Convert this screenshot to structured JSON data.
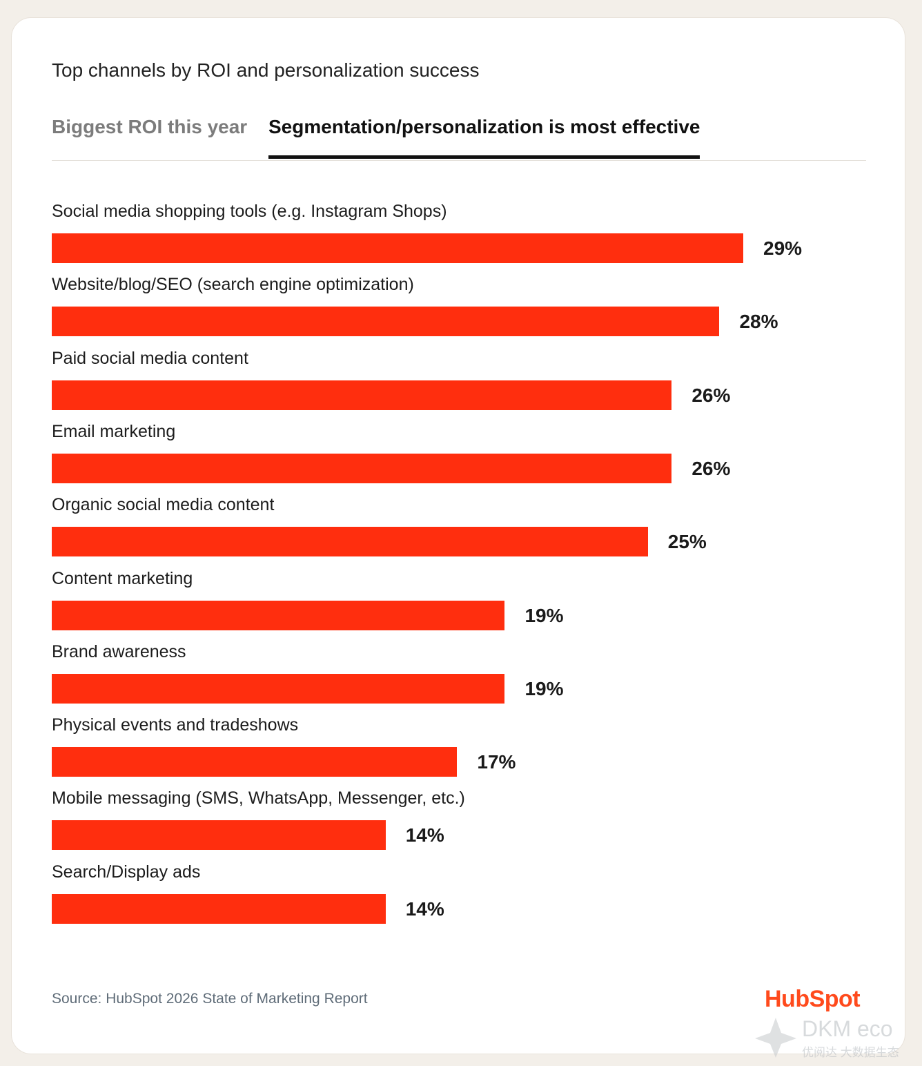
{
  "header": {
    "title": "Top channels by ROI and personalization success"
  },
  "tabs": [
    {
      "label": "Biggest ROI this year",
      "active": false
    },
    {
      "label": "Segmentation/personalization is most effective",
      "active": true
    }
  ],
  "chart_data": {
    "type": "bar",
    "orientation": "horizontal",
    "categories": [
      "Social media shopping tools (e.g. Instagram Shops)",
      "Website/blog/SEO (search engine optimization)",
      "Paid social media content",
      "Email marketing",
      "Organic social media content",
      "Content marketing",
      "Brand awareness",
      "Physical events and tradeshows",
      "Mobile messaging (SMS, WhatsApp, Messenger, etc.)",
      "Search/Display ads"
    ],
    "values": [
      29,
      28,
      26,
      26,
      25,
      19,
      19,
      17,
      14,
      14
    ],
    "value_labels": [
      "29%",
      "28%",
      "26%",
      "26%",
      "25%",
      "19%",
      "19%",
      "17%",
      "14%",
      "14%"
    ],
    "unit": "%",
    "bar_color": "#ff2e0e"
  },
  "footer": {
    "source": "Source: HubSpot 2026 State of Marketing Report",
    "logo_text": "HubSpot",
    "logo_color": "#ff4a1c"
  },
  "watermark": {
    "line1": "DKM eco",
    "line2": "优阅达 大数据生态"
  }
}
